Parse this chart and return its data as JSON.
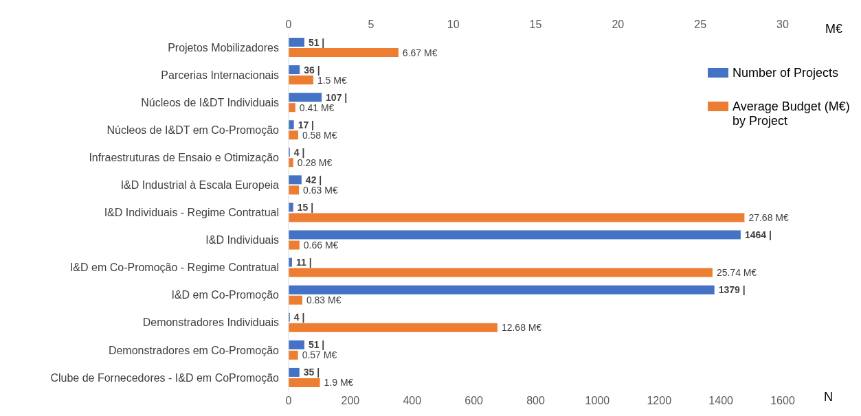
{
  "chart_data": {
    "type": "bar",
    "orientation": "horizontal",
    "categories": [
      "Projetos Mobilizadores",
      "Parcerias Internacionais",
      "Núcleos de I&DT Individuais",
      "Núcleos de I&DT em Co-Promoção",
      "Infraestruturas de Ensaio e Otimização",
      "I&D Industrial à Escala Europeia",
      "I&D Individuais - Regime Contratual",
      "I&D Individuais",
      "I&D em Co-Promoção - Regime Contratual",
      "I&D em Co-Promoção",
      "Demonstradores Individuais",
      "Demonstradores em Co-Promoção",
      "Clube de Fornecedores - I&D em CoPromoção"
    ],
    "series": [
      {
        "name": "Number of Projects",
        "color": "#4472c4",
        "values": [
          51,
          36,
          107,
          17,
          4,
          42,
          15,
          1464,
          11,
          1379,
          4,
          51,
          35
        ],
        "value_labels": [
          "51 |",
          "36 |",
          "107 |",
          "17 |",
          "4 |",
          "42 |",
          "15 |",
          "1464 |",
          "11 |",
          "1379 |",
          "4 |",
          "51 |",
          "35 |"
        ]
      },
      {
        "name": "Average Budget (M€) by Project",
        "color": "#ed7d31",
        "axis": "x2",
        "values": [
          6.67,
          1.5,
          0.41,
          0.58,
          0.28,
          0.63,
          27.68,
          0.66,
          25.74,
          0.83,
          12.68,
          0.57,
          1.9
        ],
        "value_labels": [
          "6.67 M€",
          "1.5 M€",
          "0.41 M€",
          "0.58 M€",
          "0.28 M€",
          "0.63 M€",
          "27.68 M€",
          "0.66 M€",
          "25.74 M€",
          "0.83 M€",
          "12.68 M€",
          "0.57 M€",
          "1.9 M€"
        ]
      }
    ],
    "xlabel": "N",
    "xlim": [
      0,
      1600
    ],
    "xticks": [
      0,
      200,
      400,
      600,
      800,
      1000,
      1200,
      1400,
      1600
    ],
    "x2label": "M€",
    "x2lim": [
      0,
      30
    ],
    "x2ticks": [
      0,
      5,
      10,
      15,
      20,
      25,
      30
    ],
    "legend": "top right"
  }
}
